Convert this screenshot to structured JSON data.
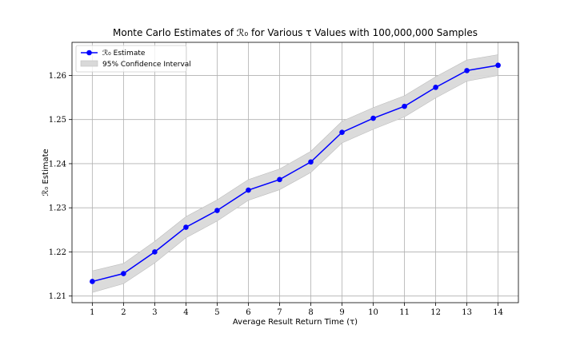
{
  "chart_data": {
    "type": "line",
    "title": "Monte Carlo Estimates of ℛ₀ for Various τ Values with 100,000,000 Samples",
    "xlabel": "Average Result Return Time (τ)",
    "ylabel": "ℛ₀ Estimate",
    "x": [
      1,
      2,
      3,
      4,
      5,
      6,
      7,
      8,
      9,
      10,
      11,
      12,
      13,
      14
    ],
    "xticks": [
      "1",
      "2",
      "3",
      "4",
      "5",
      "6",
      "7",
      "8",
      "9",
      "10",
      "11",
      "12",
      "13",
      "14"
    ],
    "xlim": [
      0.35,
      14.65
    ],
    "yticks": [
      "1.21",
      "1.22",
      "1.23",
      "1.24",
      "1.25",
      "1.26"
    ],
    "ylim": [
      1.2085,
      1.2675
    ],
    "grid": true,
    "legend_position": "top-left",
    "series": [
      {
        "name": "ℛ₀ Estimate",
        "values": [
          1.2133,
          1.2151,
          1.22,
          1.2256,
          1.2294,
          1.234,
          1.2364,
          1.2404,
          1.2471,
          1.2503,
          1.253,
          1.2573,
          1.2611,
          1.2623
        ],
        "color": "#0000ff"
      }
    ],
    "confidence_interval": {
      "name": "95% Confidence Interval",
      "lower": [
        1.2108,
        1.2128,
        1.2175,
        1.2232,
        1.227,
        1.2317,
        1.2341,
        1.238,
        1.2447,
        1.2478,
        1.2506,
        1.2549,
        1.2587,
        1.26
      ],
      "upper": [
        1.2157,
        1.2174,
        1.2224,
        1.228,
        1.2318,
        1.2364,
        1.2388,
        1.2428,
        1.2496,
        1.2527,
        1.2554,
        1.2597,
        1.2635,
        1.2647
      ],
      "color": "#d9d9d9"
    }
  }
}
